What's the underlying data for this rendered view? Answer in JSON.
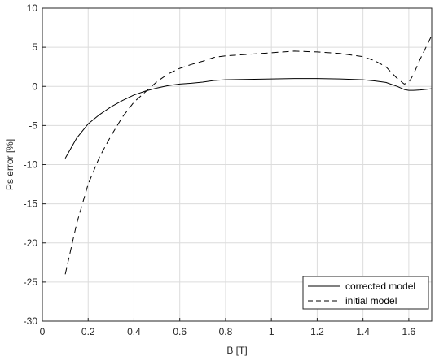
{
  "chart_data": {
    "type": "line",
    "xlabel": "B [T]",
    "ylabel": "Ps error [%]",
    "xlim": [
      0,
      1.7
    ],
    "ylim": [
      -30,
      10
    ],
    "xticks": [
      0,
      0.2,
      0.4,
      0.6,
      0.8,
      1,
      1.2,
      1.4,
      1.6
    ],
    "xtick_labels": [
      "0",
      "0.2",
      "0.4",
      "0.6",
      "0.8",
      "1",
      "1.2",
      "1.4",
      "1.6"
    ],
    "yticks": [
      -30,
      -25,
      -20,
      -15,
      -10,
      -5,
      0,
      5,
      10
    ],
    "ytick_labels": [
      "-30",
      "-25",
      "-20",
      "-15",
      "-10",
      "-5",
      "0",
      "5",
      "10"
    ],
    "grid": true,
    "legend_position": "bottom-right",
    "series": [
      {
        "name": "corrected model",
        "style": "solid",
        "color": "#000000",
        "x": [
          0.1,
          0.15,
          0.2,
          0.25,
          0.3,
          0.35,
          0.4,
          0.45,
          0.5,
          0.55,
          0.6,
          0.65,
          0.7,
          0.75,
          0.8,
          0.9,
          1.0,
          1.1,
          1.2,
          1.3,
          1.4,
          1.45,
          1.5,
          1.55,
          1.58,
          1.6,
          1.62,
          1.65,
          1.7
        ],
        "y": [
          -9.2,
          -6.6,
          -4.8,
          -3.6,
          -2.6,
          -1.8,
          -1.1,
          -0.6,
          -0.2,
          0.1,
          0.3,
          0.4,
          0.55,
          0.75,
          0.85,
          0.9,
          0.95,
          1.0,
          1.0,
          0.95,
          0.85,
          0.7,
          0.5,
          0.0,
          -0.4,
          -0.5,
          -0.5,
          -0.45,
          -0.3
        ]
      },
      {
        "name": "initial model",
        "style": "dashed",
        "color": "#000000",
        "x": [
          0.1,
          0.15,
          0.2,
          0.25,
          0.3,
          0.35,
          0.4,
          0.45,
          0.5,
          0.55,
          0.6,
          0.65,
          0.7,
          0.75,
          0.8,
          0.9,
          1.0,
          1.1,
          1.2,
          1.3,
          1.4,
          1.45,
          1.5,
          1.55,
          1.58,
          1.6,
          1.62,
          1.65,
          1.7
        ],
        "y": [
          -24.0,
          -17.5,
          -12.5,
          -9.0,
          -6.3,
          -3.9,
          -2.0,
          -0.7,
          0.6,
          1.6,
          2.3,
          2.8,
          3.2,
          3.7,
          3.9,
          4.1,
          4.3,
          4.5,
          4.4,
          4.2,
          3.8,
          3.3,
          2.5,
          1.0,
          0.3,
          0.5,
          1.5,
          3.5,
          6.5
        ]
      }
    ]
  }
}
